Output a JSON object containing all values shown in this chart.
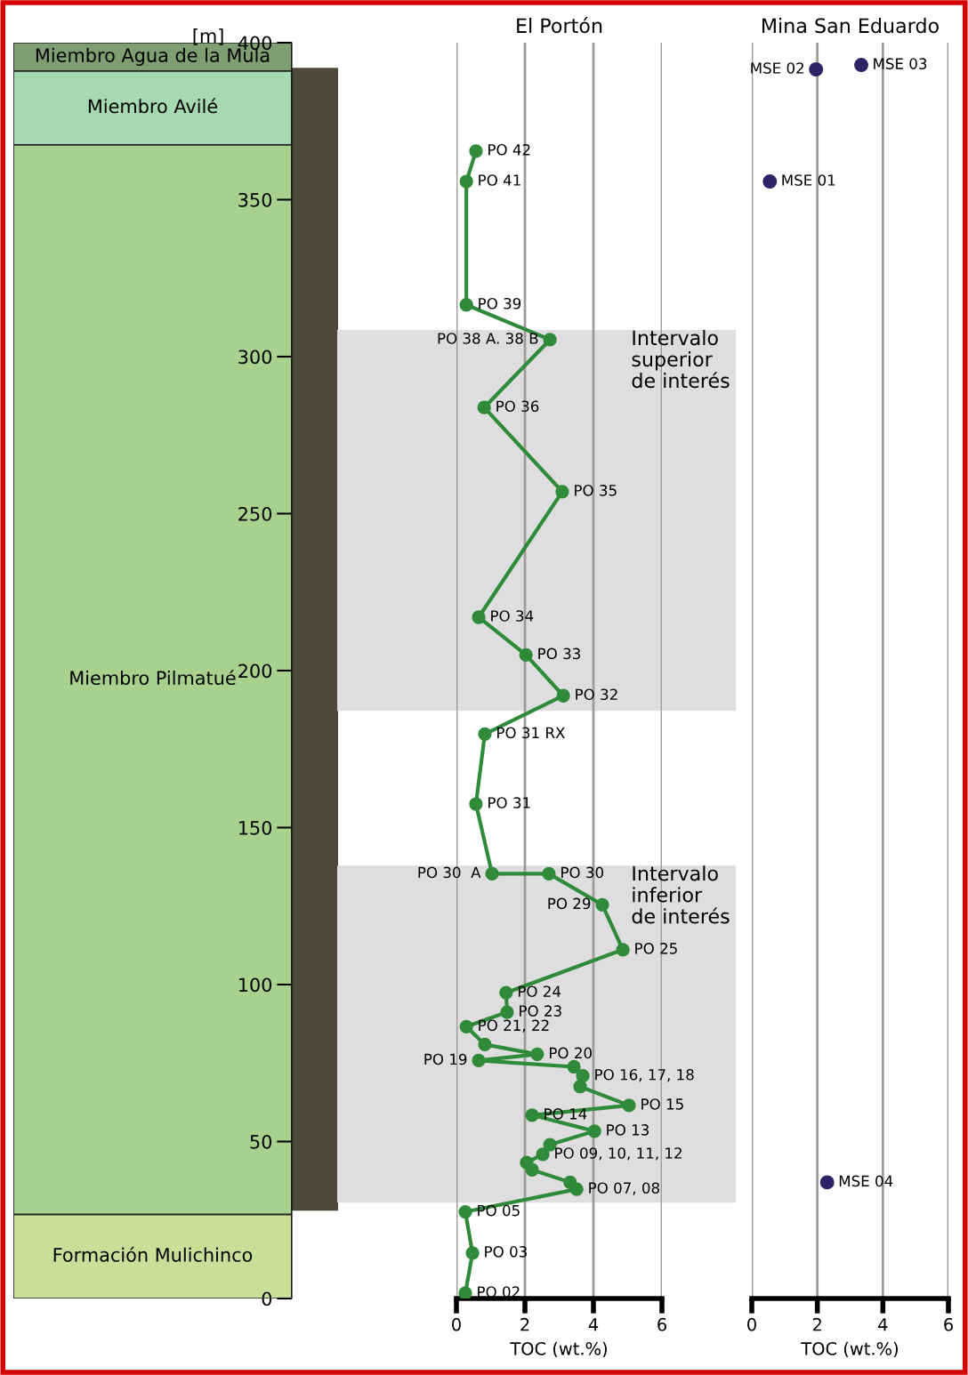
{
  "chart_data": [
    {
      "type": "bar",
      "stacked": true,
      "categories": [
        null
      ],
      "ylabel": "[m]",
      "ylim": [
        0,
        400
      ],
      "tick_labels": "y",
      "yticks": [
        0,
        50,
        100,
        150,
        200,
        250,
        300,
        350,
        400
      ],
      "series": [
        {
          "name": "Formación Mulichinco",
          "color": "#c8df98",
          "values": [
            26.8
          ]
        },
        {
          "name": "Miembro Pilmatué",
          "color": "#a9d18e",
          "values": [
            340.7
          ]
        },
        {
          "name": "Miembro Avilé",
          "color": "#a6d9b2",
          "values": [
            23.5
          ]
        },
        {
          "name": "Miembro Agua de la Mula",
          "color": "#7f9e72",
          "values": [
            9
          ]
        }
      ]
    },
    {
      "type": "line",
      "title": "El Portón",
      "xlabel": "TOC (wt.%)",
      "xlim": [
        0,
        6
      ],
      "xticks": [
        0,
        2,
        4,
        6
      ],
      "ylim": [
        0,
        400
      ],
      "tick_labels": "x",
      "grid": "x",
      "marker": "circle",
      "line_style": "solid",
      "series": [
        {
          "color": "#2f8a3a",
          "x": [
            0.57,
            0.29,
            0.29,
            2.73,
            0.81,
            3.09,
            0.65,
            2.03,
            3.12,
            0.83,
            0.57,
            1.04,
            2.7,
            4.26,
            4.86,
            1.45,
            1.48,
            0.29,
            0.83,
            2.36,
            0.65,
            3.43,
            3.69,
            3.61,
            5.04,
            2.21,
            4.03,
            2.73,
            2.52,
            2.05,
            2.21,
            3.32,
            3.51,
            0.26,
            0.47,
            0.26
          ],
          "values": [
            365.5,
            355.8,
            316.5,
            305.4,
            283.8,
            257,
            217,
            205,
            192,
            179.8,
            157.5,
            135.3,
            135.3,
            125.4,
            111.1,
            97.4,
            91.2,
            86.6,
            80.9,
            77.8,
            75.8,
            73.8,
            70.9,
            67.5,
            61.5,
            58.4,
            53.3,
            49,
            45.9,
            43.3,
            41,
            37,
            34.8,
            27.6,
            14.5,
            1.7
          ]
        }
      ],
      "bands": [
        {
          "axis": "y",
          "from": 187.2,
          "to": 308.5,
          "label": "Intervalo\nsuperior\nde interés",
          "color": "#dedede"
        },
        {
          "axis": "y",
          "from": 30.5,
          "to": 137.9,
          "label": "Intervalo\ninferior\nde interés",
          "color": "#dedede"
        }
      ],
      "annotations": [
        {
          "text": "PO 42",
          "x": 0.57,
          "y": 365.5
        },
        {
          "text": "PO 41",
          "x": 0.29,
          "y": 355.8
        },
        {
          "text": "PO 39",
          "x": 0.29,
          "y": 316.5
        },
        {
          "text": "PO 38 A. 38 B",
          "x": 2.73,
          "y": 305.4
        },
        {
          "text": "PO 36",
          "x": 0.81,
          "y": 283.8
        },
        {
          "text": "PO 35",
          "x": 3.09,
          "y": 257
        },
        {
          "text": "PO 34",
          "x": 0.65,
          "y": 217
        },
        {
          "text": "PO 33",
          "x": 2.03,
          "y": 205
        },
        {
          "text": "PO 32",
          "x": 3.12,
          "y": 192
        },
        {
          "text": "PO 31 RX",
          "x": 0.83,
          "y": 179.8
        },
        {
          "text": "PO 31",
          "x": 0.57,
          "y": 157.5
        },
        {
          "text": "PO 30  A",
          "x": 1.04,
          "y": 135.3
        },
        {
          "text": "PO 30",
          "x": 2.7,
          "y": 135.3
        },
        {
          "text": "PO 29",
          "x": 4.26,
          "y": 125.4
        },
        {
          "text": "PO 25",
          "x": 4.86,
          "y": 111.1
        },
        {
          "text": "PO 24",
          "x": 1.45,
          "y": 97.4
        },
        {
          "text": "PO 23",
          "x": 1.48,
          "y": 91.2
        },
        {
          "text": "PO 21, 22",
          "x": 0.29,
          "y": 86.6
        },
        {
          "text": "PO 20",
          "x": 2.36,
          "y": 77.8
        },
        {
          "text": "PO 19",
          "x": 0.65,
          "y": 75.8
        },
        {
          "text": "PO 16, 17, 18",
          "x": 3.69,
          "y": 70.9
        },
        {
          "text": "PO 15",
          "x": 5.04,
          "y": 61.5
        },
        {
          "text": "PO 14",
          "x": 2.21,
          "y": 58.4
        },
        {
          "text": "PO 13",
          "x": 4.03,
          "y": 53.3
        },
        {
          "text": "PO 09, 10, 11, 12",
          "x": 2.52,
          "y": 45.9
        },
        {
          "text": "PO 07, 08",
          "x": 3.51,
          "y": 34.8
        },
        {
          "text": "PO 05",
          "x": 0.26,
          "y": 27.6
        },
        {
          "text": "PO 03",
          "x": 0.47,
          "y": 14.5
        },
        {
          "text": "PO 02",
          "x": 0.26,
          "y": 1.7
        }
      ]
    },
    {
      "type": "scatter",
      "title": "Mina San Eduardo",
      "xlabel": "TOC (wt.%)",
      "xlim": [
        0,
        6
      ],
      "xticks": [
        0,
        2,
        4,
        6
      ],
      "ylim": [
        0,
        400
      ],
      "tick_labels": "x",
      "grid": "x",
      "marker": "circle",
      "series": [
        {
          "color": "#2e2366",
          "x": [
            1.96,
            3.34,
            0.55,
            2.3
          ],
          "values": [
            391.5,
            392.9,
            355.8,
            37
          ]
        }
      ],
      "annotations": [
        {
          "text": "MSE 02",
          "x": 1.96,
          "y": 391.5
        },
        {
          "text": "MSE 03",
          "x": 3.34,
          "y": 392.9
        },
        {
          "text": "MSE 01",
          "x": 0.55,
          "y": 355.8
        },
        {
          "text": "MSE 04",
          "x": 2.3,
          "y": 37
        }
      ]
    }
  ]
}
